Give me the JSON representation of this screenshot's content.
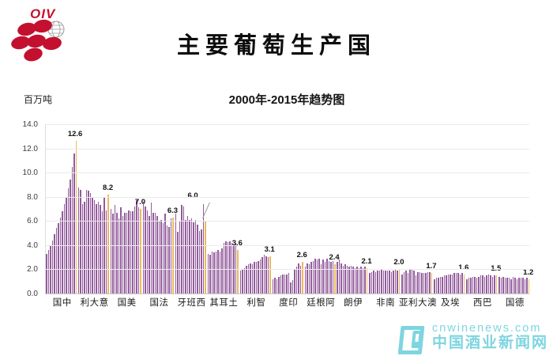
{
  "logo": {
    "text": "OIV"
  },
  "title": "主要葡萄生产国",
  "subtitle": "2000年-2015年趋势图",
  "y_axis_label": "百万吨",
  "watermark": {
    "url_text": "cnwinenews.com",
    "site_name": "中国酒业新闻网"
  },
  "chart_data": {
    "type": "bar",
    "title": "主要葡萄生产国",
    "subtitle": "2000年-2015年趋势图",
    "ylabel": "百万吨",
    "ylim": [
      0,
      14
    ],
    "y_ticks": [
      "14.0",
      "12.0",
      "10.0",
      "8.0",
      "6.0",
      "4.0",
      "2.0",
      "0.0"
    ],
    "grid": true,
    "bar_color": "#9a5fa3",
    "highlight_color": "#f2b13e",
    "note": "each group = yearly bars 2000-2015, last (2015) bar highlighted and labeled",
    "countries": [
      {
        "label": "中国",
        "final_value": 12.6,
        "values": [
          3.3,
          3.6,
          4.0,
          4.4,
          4.9,
          5.4,
          5.8,
          6.3,
          6.8,
          7.4,
          8.0,
          8.7,
          9.4,
          10.5,
          11.6,
          12.6
        ]
      },
      {
        "label": "意大利",
        "final_value": 8.2,
        "values": [
          8.8,
          8.6,
          7.4,
          7.6,
          8.6,
          8.5,
          8.3,
          7.9,
          7.7,
          7.4,
          7.6,
          7.3,
          6.8,
          8.0,
          6.9,
          8.2
        ]
      },
      {
        "label": "美国",
        "final_value": 7.0,
        "values": [
          7.0,
          6.6,
          7.3,
          6.7,
          6.2,
          7.1,
          6.4,
          6.7,
          6.7,
          6.9,
          6.8,
          6.8,
          7.2,
          7.7,
          7.1,
          7.0
        ]
      },
      {
        "label": "法国",
        "final_value": 6.3,
        "values": [
          7.6,
          7.2,
          6.9,
          6.4,
          7.5,
          6.7,
          6.7,
          6.4,
          6.0,
          6.1,
          5.8,
          6.6,
          5.6,
          5.5,
          6.2,
          6.3
        ]
      },
      {
        "label": "西班牙",
        "final_value": 6.0,
        "callout": true,
        "values": [
          6.6,
          5.1,
          6.0,
          7.3,
          7.2,
          6.1,
          6.4,
          6.1,
          6.2,
          5.9,
          6.1,
          5.7,
          5.2,
          5.3,
          7.4,
          6.0
        ]
      },
      {
        "label": "土耳其",
        "final_value": 3.6,
        "values": [
          3.3,
          3.2,
          3.5,
          3.4,
          3.5,
          3.6,
          3.5,
          3.7,
          4.2,
          4.3,
          4.25,
          4.3,
          4.2,
          4.0,
          4.2,
          3.6
        ]
      },
      {
        "label": "智利",
        "final_value": 3.1,
        "values": [
          1.9,
          2.0,
          2.1,
          2.3,
          2.4,
          2.5,
          2.4,
          2.6,
          2.6,
          2.7,
          2.8,
          3.0,
          3.2,
          3.1,
          3.0,
          3.1
        ]
      },
      {
        "label": "印度",
        "final_value": 2.6,
        "values": [
          1.2,
          1.3,
          1.2,
          1.4,
          1.5,
          1.6,
          1.55,
          1.6,
          1.7,
          0.9,
          1.1,
          2.0,
          2.2,
          2.5,
          2.3,
          2.6
        ]
      },
      {
        "label": "阿根廷",
        "final_value": 2.4,
        "values": [
          2.2,
          2.5,
          2.4,
          2.6,
          2.7,
          2.9,
          2.8,
          2.9,
          2.4,
          2.8,
          2.6,
          2.9,
          2.7,
          2.6,
          2.7,
          2.4
        ]
      },
      {
        "label": "伊朗",
        "final_value": 2.1,
        "values": [
          2.6,
          2.8,
          2.5,
          2.3,
          2.4,
          2.3,
          2.2,
          2.3,
          2.2,
          2.1,
          2.2,
          2.1,
          2.2,
          2.1,
          2.2,
          2.1
        ]
      },
      {
        "label": "南非",
        "final_value": 2.0,
        "values": [
          1.7,
          1.8,
          1.9,
          1.8,
          1.9,
          1.9,
          2.0,
          1.9,
          1.9,
          1.9,
          1.9,
          1.8,
          1.9,
          2.0,
          1.9,
          2.0
        ]
      },
      {
        "label": "澳大利亚",
        "final_value": 1.7,
        "values": [
          1.6,
          1.8,
          1.9,
          1.7,
          2.0,
          2.0,
          1.9,
          1.5,
          1.8,
          1.8,
          1.7,
          1.7,
          1.7,
          1.8,
          1.8,
          1.7
        ]
      },
      {
        "label": "埃及",
        "final_value": 1.6,
        "values": [
          1.2,
          1.3,
          1.3,
          1.4,
          1.4,
          1.5,
          1.5,
          1.6,
          1.6,
          1.6,
          1.7,
          1.7,
          1.7,
          1.6,
          1.7,
          1.6
        ]
      },
      {
        "label": "巴西",
        "final_value": 1.5,
        "values": [
          1.2,
          1.3,
          1.3,
          1.4,
          1.4,
          1.3,
          1.4,
          1.5,
          1.5,
          1.4,
          1.5,
          1.6,
          1.5,
          1.4,
          1.5,
          1.5
        ]
      },
      {
        "label": "德国",
        "final_value": 1.2,
        "values": [
          1.4,
          1.3,
          1.4,
          1.3,
          1.3,
          1.3,
          1.2,
          1.4,
          1.3,
          1.2,
          1.3,
          1.3,
          1.3,
          1.2,
          1.3,
          1.2
        ]
      }
    ]
  }
}
